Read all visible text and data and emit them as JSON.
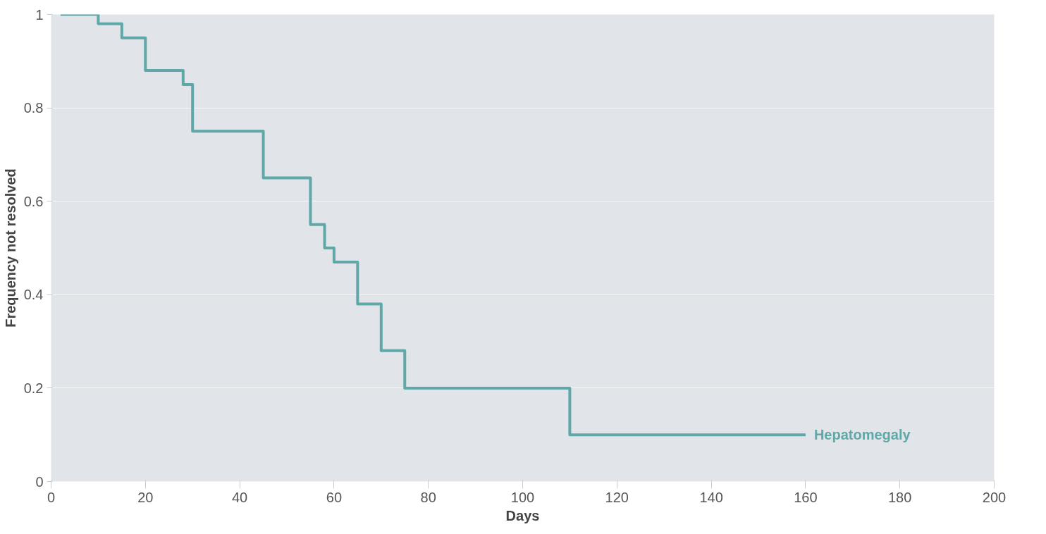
{
  "chart_data": {
    "type": "step",
    "xlabel": "Days",
    "ylabel": "Frequency not resolved",
    "xlim": [
      0,
      200
    ],
    "ylim": [
      0,
      1
    ],
    "xticks": [
      0,
      20,
      40,
      60,
      80,
      100,
      120,
      140,
      160,
      180,
      200
    ],
    "yticks": [
      0,
      0.2,
      0.4,
      0.6,
      0.8,
      1
    ],
    "grid": "y",
    "legend": false,
    "series": [
      {
        "name": "Hepatomegaly",
        "color": "#5fa8a7",
        "x": [
          2,
          10,
          15,
          20,
          28,
          30,
          45,
          55,
          58,
          60,
          65,
          70,
          75,
          110,
          160
        ],
        "values": [
          1,
          0.98,
          0.95,
          0.88,
          0.85,
          0.75,
          0.65,
          0.55,
          0.5,
          0.47,
          0.38,
          0.28,
          0.2,
          0.1,
          0.1
        ]
      }
    ]
  }
}
